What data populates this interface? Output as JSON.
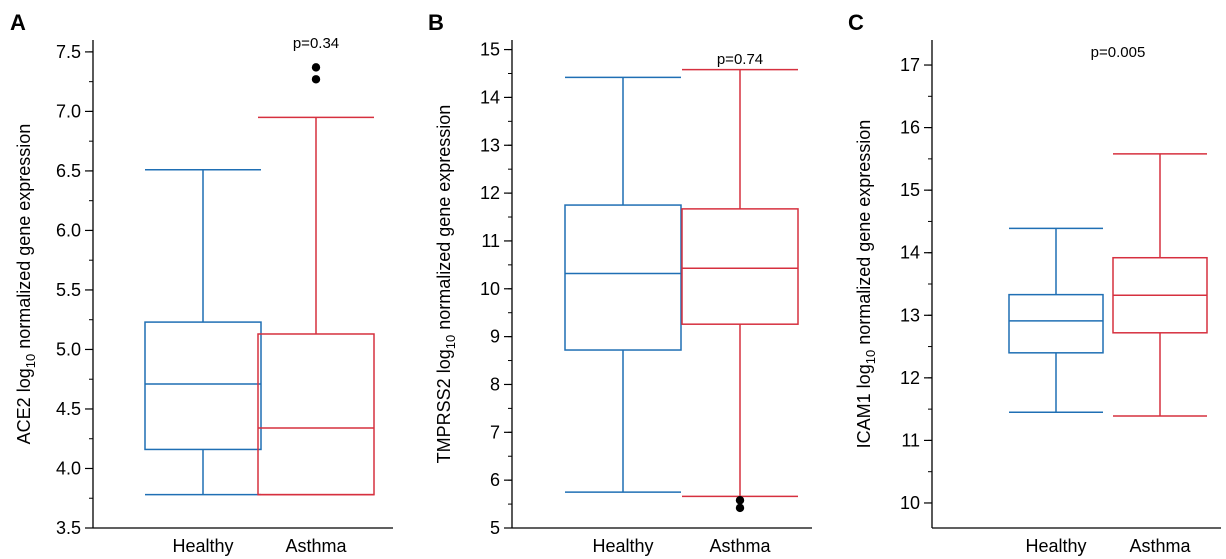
{
  "chart_data": [
    {
      "type": "box",
      "panel": "A",
      "ylabel": {
        "prefix": "ACE2 log",
        "sub": "10",
        "suffix": " normalized gene expression"
      },
      "ylim": [
        3.5,
        7.6
      ],
      "yticks": [
        "3.5",
        "4.0",
        "4.5",
        "5.0",
        "5.5",
        "6.0",
        "6.5",
        "7.0",
        "7.5"
      ],
      "yminor_step": 0.25,
      "annotation": "p=0.34",
      "categories": [
        "Healthy",
        "Asthma"
      ],
      "series": [
        {
          "whisker_low": 3.78,
          "q1": 4.16,
          "median": 4.71,
          "q3": 5.23,
          "whisker_high": 6.51,
          "outliers": [],
          "color": "#1f6fb4"
        },
        {
          "whisker_low": 3.78,
          "q1": 3.78,
          "median": 4.34,
          "q3": 5.13,
          "whisker_high": 6.95,
          "outliers": [
            7.27,
            7.37
          ],
          "color": "#d6303f"
        }
      ]
    },
    {
      "type": "box",
      "panel": "B",
      "ylabel": {
        "prefix": "TMPRSS2 log",
        "sub": "10",
        "suffix": " normalized gene expression"
      },
      "ylim": [
        5,
        15.2
      ],
      "yticks": [
        "5",
        "6",
        "7",
        "8",
        "9",
        "10",
        "11",
        "12",
        "13",
        "14",
        "15"
      ],
      "yminor_step": 0.5,
      "annotation": "p=0.74",
      "categories": [
        "Healthy",
        "Asthma"
      ],
      "series": [
        {
          "whisker_low": 5.75,
          "q1": 8.72,
          "median": 10.32,
          "q3": 11.75,
          "whisker_high": 14.42,
          "outliers": [],
          "color": "#1f6fb4"
        },
        {
          "whisker_low": 5.66,
          "q1": 9.26,
          "median": 10.43,
          "q3": 11.67,
          "whisker_high": 14.58,
          "outliers": [
            5.42,
            5.58
          ],
          "color": "#d6303f"
        }
      ]
    },
    {
      "type": "box",
      "panel": "C",
      "ylabel": {
        "prefix": "ICAM1 log",
        "sub": "10",
        "suffix": " normalized gene expression"
      },
      "ylim": [
        9.6,
        17.4
      ],
      "yticks": [
        "10",
        "11",
        "12",
        "13",
        "14",
        "15",
        "16",
        "17"
      ],
      "yminor_step": 0.5,
      "annotation": "p=0.005",
      "categories": [
        "Healthy",
        "Asthma"
      ],
      "series": [
        {
          "whisker_low": 11.45,
          "q1": 12.4,
          "median": 12.91,
          "q3": 13.33,
          "whisker_high": 14.39,
          "outliers": [],
          "color": "#1f6fb4"
        },
        {
          "whisker_low": 11.39,
          "q1": 12.72,
          "median": 13.32,
          "q3": 13.92,
          "whisker_high": 15.58,
          "outliers": [],
          "color": "#d6303f"
        }
      ]
    }
  ]
}
